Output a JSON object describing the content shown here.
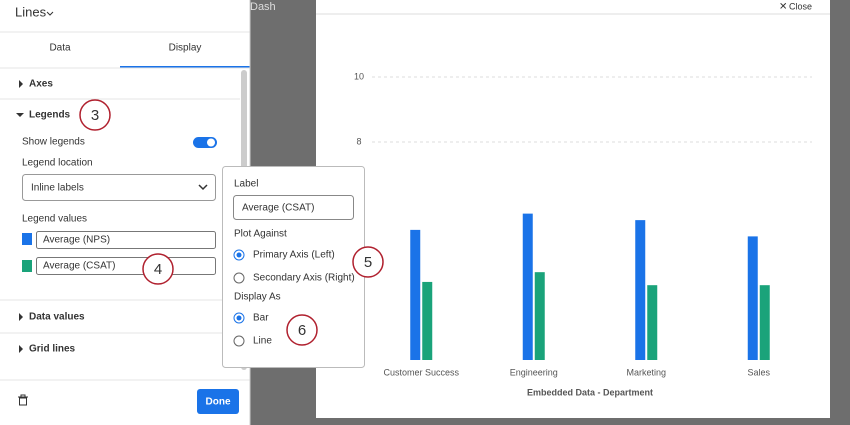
{
  "panel": {
    "title": "Lines",
    "tabs": [
      "Data",
      "Display"
    ],
    "sections": [
      "Axes",
      "Legends",
      "Data values",
      "Grid lines"
    ],
    "show_legends": "Show legends",
    "legend_location": "Legend location",
    "legend_location_value": "Inline labels",
    "legend_values": "Legend values",
    "done": "Done"
  },
  "popover": {
    "label": "Label",
    "plot_against": "Plot Against",
    "plot_options": [
      "Primary Axis (Left)",
      "Secondary Axis (Right)"
    ],
    "display_as": "Display As",
    "display_options": [
      "Bar",
      "Line"
    ]
  },
  "callouts": [
    "3",
    "4",
    "5",
    "6"
  ],
  "background": {
    "dashboard": "Dash",
    "close": "Close"
  },
  "chart_data": {
    "type": "bar",
    "x_label": "Embedded Data - Department",
    "categories": [
      "Customer Success",
      "Engineering",
      "Marketing",
      "Sales"
    ],
    "series": [
      {
        "name": "Average (NPS)",
        "color": "#1a73e8",
        "values": [
          5.3,
          5.8,
          5.6,
          5.1
        ]
      },
      {
        "name": "Average (CSAT)",
        "color": "#1aa37a",
        "values": [
          3.7,
          4.0,
          3.6,
          3.6
        ]
      }
    ],
    "ylim": [
      1.3,
      10
    ],
    "yticks": [
      8,
      10
    ],
    "grid": true
  }
}
